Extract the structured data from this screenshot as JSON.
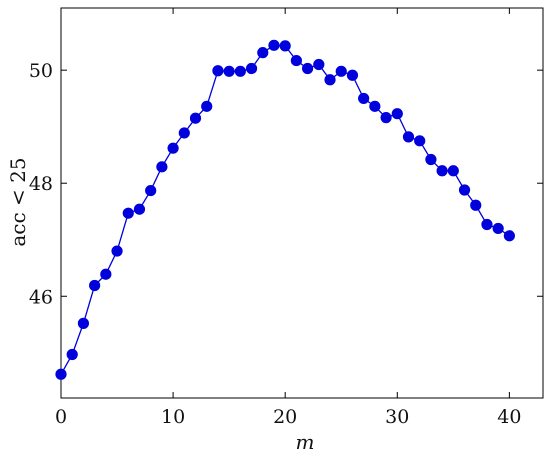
{
  "chart_data": {
    "type": "line",
    "title": "",
    "xlabel": "m",
    "ylabel": "acc < 25",
    "xlim": [
      0,
      43
    ],
    "ylim": [
      44.2,
      51.1
    ],
    "x_ticks": [
      0,
      10,
      20,
      30,
      40
    ],
    "y_ticks": [
      46,
      48,
      50
    ],
    "x_tick_labels": [
      "0",
      "10",
      "20",
      "30",
      "40"
    ],
    "y_tick_labels": [
      "46",
      "48",
      "50"
    ],
    "grid": false,
    "legend": "none",
    "colors": {
      "series": "#0000dd",
      "axis": "#000000"
    },
    "series": [
      {
        "x": [
          0,
          1,
          2,
          3,
          4,
          5,
          6,
          7,
          8,
          9,
          10,
          11,
          12,
          13,
          14,
          15,
          16,
          17,
          18,
          19,
          20,
          21,
          22,
          23,
          24,
          25,
          26,
          27,
          28,
          29,
          30,
          31,
          32,
          33,
          34,
          35,
          36,
          37,
          38,
          39,
          40
        ],
        "values": [
          44.62,
          44.97,
          45.52,
          46.19,
          46.39,
          46.8,
          47.47,
          47.54,
          47.87,
          48.29,
          48.62,
          48.89,
          49.15,
          49.36,
          49.99,
          49.98,
          49.98,
          50.03,
          50.31,
          50.44,
          50.43,
          50.17,
          50.03,
          50.1,
          49.83,
          49.98,
          49.91,
          49.5,
          49.36,
          49.16,
          49.23,
          48.82,
          48.75,
          48.42,
          48.22,
          48.22,
          47.88,
          47.61,
          47.27,
          47.2,
          47.07
        ]
      }
    ]
  }
}
